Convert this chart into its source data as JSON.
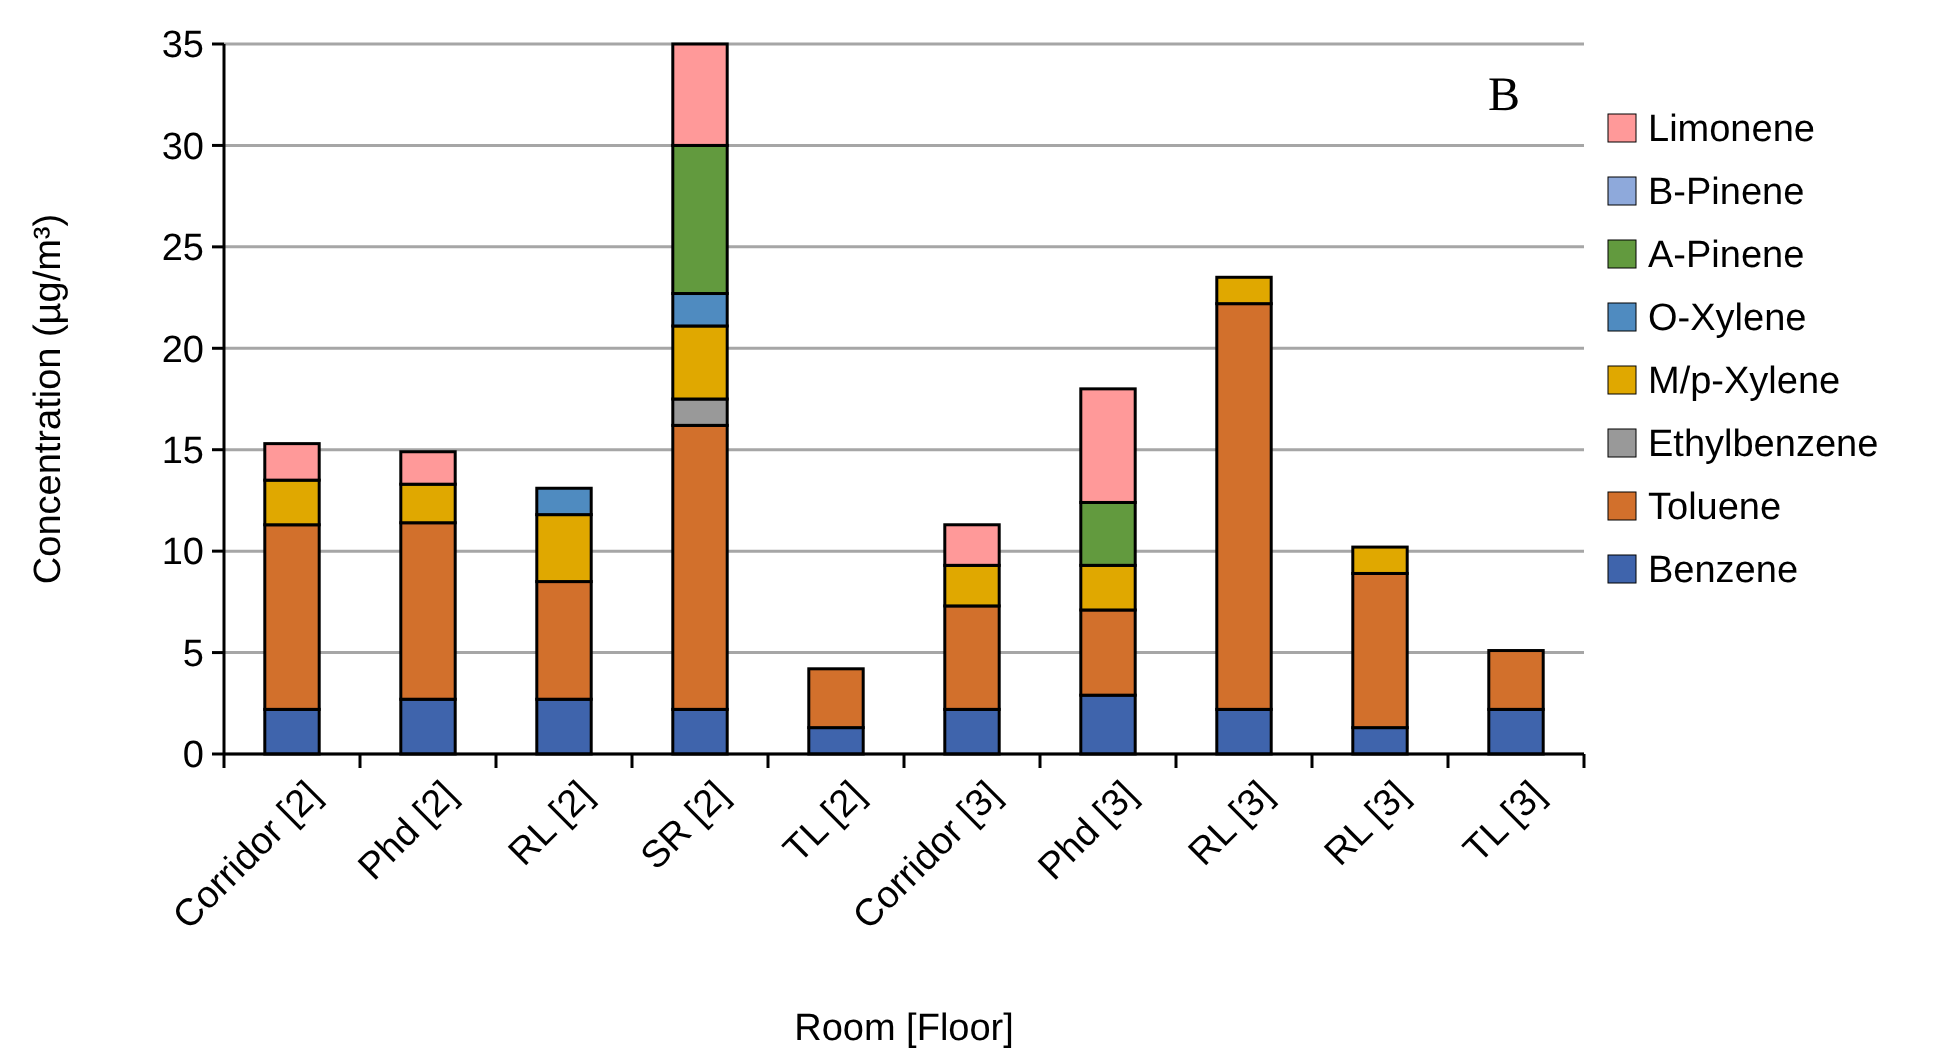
{
  "chart_data": {
    "type": "bar",
    "stacked": true,
    "xlabel": "Room [Floor]",
    "ylabel": "Concentration (µg/m³)",
    "annotations": [
      "B"
    ],
    "categories": [
      "Corridor [2]",
      "Phd [2]",
      "RL [2]",
      "SR [2]",
      "TL [2]",
      "Corridor [3]",
      "Phd [3]",
      "RL [3]",
      "RL [3]",
      "TL [3]"
    ],
    "series": [
      {
        "name": "Benzene",
        "color": "#3f64ac",
        "values": [
          2.2,
          2.7,
          2.7,
          2.2,
          1.3,
          2.2,
          2.9,
          2.2,
          1.3,
          2.2
        ]
      },
      {
        "name": "Toluene",
        "color": "#d2702c",
        "values": [
          9.1,
          8.7,
          5.8,
          14.0,
          2.9,
          5.1,
          4.2,
          20.0,
          7.6,
          2.9
        ]
      },
      {
        "name": "Ethylbenzene",
        "color": "#999999",
        "values": [
          null,
          null,
          null,
          1.3,
          null,
          null,
          null,
          null,
          null,
          null
        ]
      },
      {
        "name": "M/p-Xylene",
        "color": "#e0a800",
        "values": [
          2.2,
          1.9,
          3.3,
          3.6,
          null,
          2.0,
          2.2,
          1.3,
          1.3,
          null
        ]
      },
      {
        "name": "O-Xylene",
        "color": "#4f8bc0",
        "values": [
          null,
          null,
          1.3,
          1.6,
          null,
          null,
          null,
          null,
          null,
          null
        ]
      },
      {
        "name": "A-Pinene",
        "color": "#629a3e",
        "values": [
          null,
          null,
          null,
          7.3,
          null,
          null,
          3.1,
          null,
          null,
          null
        ]
      },
      {
        "name": "B-Pinene",
        "color": "#8ea9db",
        "values": [
          null,
          null,
          null,
          null,
          null,
          null,
          null,
          null,
          null,
          null
        ]
      },
      {
        "name": "Limonene",
        "color": "#ff9999",
        "values": [
          1.8,
          1.6,
          null,
          5.0,
          null,
          2.0,
          5.6,
          null,
          null,
          null
        ]
      }
    ],
    "ylim": [
      0,
      35
    ],
    "yticks": [
      0,
      5,
      10,
      15,
      20,
      25,
      30,
      35
    ],
    "grid": "y",
    "legend": "right"
  }
}
